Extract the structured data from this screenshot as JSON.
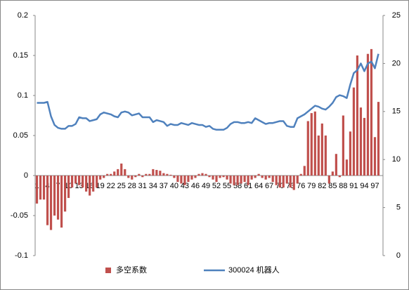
{
  "chart_data": {
    "type": "bar-line",
    "categories": [
      "1",
      null,
      null,
      "4",
      null,
      null,
      "7",
      null,
      null,
      "10",
      null,
      null,
      "13",
      null,
      null,
      "16",
      null,
      null,
      "19",
      null,
      null,
      "22",
      null,
      null,
      "25",
      null,
      null,
      "28",
      null,
      null,
      "31",
      null,
      null,
      "34",
      null,
      null,
      "37",
      null,
      null,
      "40",
      null,
      null,
      "43",
      null,
      null,
      "46",
      null,
      null,
      "49",
      null,
      null,
      "52",
      null,
      null,
      "55",
      null,
      null,
      "58",
      null,
      null,
      "61",
      null,
      null,
      "64",
      null,
      null,
      "67",
      null,
      null,
      "70",
      null,
      null,
      "73",
      null,
      null,
      "76",
      null,
      null,
      "79",
      null,
      null,
      "82",
      null,
      null,
      "85",
      null,
      null,
      "88",
      null,
      null,
      "91",
      null,
      null,
      "94",
      null,
      null,
      "97",
      null
    ],
    "series": [
      {
        "name": "多空系数",
        "color": "#c0504d",
        "kind": "bar",
        "values": [
          -0.035,
          -0.03,
          -0.03,
          -0.062,
          -0.068,
          -0.05,
          -0.055,
          -0.065,
          -0.045,
          -0.028,
          -0.015,
          -0.01,
          -0.012,
          -0.015,
          -0.02,
          -0.025,
          -0.02,
          -0.015,
          -0.005,
          -0.003,
          0.002,
          0.002,
          0.005,
          0.008,
          0.015,
          0.008,
          -0.003,
          -0.005,
          -0.002,
          0.002,
          -0.002,
          0.002,
          0.002,
          0.008,
          0.007,
          0.006,
          0.003,
          0.002,
          0.001,
          -0.003,
          -0.008,
          -0.01,
          -0.012,
          -0.008,
          -0.005,
          -0.003,
          0.002,
          0.003,
          0.002,
          -0.002,
          -0.005,
          -0.008,
          -0.003,
          -0.002,
          -0.005,
          -0.01,
          -0.012,
          -0.012,
          -0.01,
          -0.008,
          -0.012,
          -0.005,
          -0.003,
          0.002,
          -0.003,
          -0.005,
          -0.003,
          -0.008,
          -0.012,
          -0.015,
          -0.015,
          -0.01,
          -0.015,
          -0.018,
          -0.01,
          0.002,
          0.012,
          0.068,
          0.078,
          0.08,
          0.05,
          0.065,
          0.05,
          -0.01,
          0.005,
          0.027,
          -0.002,
          0.075,
          0.02,
          0.055,
          0.11,
          0.15,
          0.085,
          0.072,
          0.152,
          0.158,
          0.048,
          0.092
        ]
      },
      {
        "name": "300024 机器人",
        "color": "#4f81bd",
        "kind": "line",
        "axis": "y2",
        "values": [
          15.9,
          15.9,
          15.9,
          16,
          14.5,
          13.6,
          13.3,
          13.2,
          13.2,
          13.5,
          13.5,
          13.7,
          14.4,
          14.3,
          14.3,
          14.0,
          14.1,
          14.2,
          14.7,
          14.9,
          14.8,
          14.7,
          14.5,
          14.4,
          14.9,
          15.0,
          14.9,
          14.6,
          14.7,
          14.8,
          14.4,
          14.4,
          14.4,
          13.9,
          14.1,
          14.0,
          13.9,
          13.5,
          13.7,
          13.6,
          13.6,
          13.8,
          13.7,
          13.6,
          13.8,
          13.7,
          13.6,
          13.6,
          13.4,
          13.5,
          13.2,
          13.1,
          13.1,
          13.1,
          13.3,
          13.7,
          13.9,
          13.9,
          13.8,
          13.8,
          13.9,
          13.8,
          14.3,
          14.1,
          13.9,
          13.7,
          13.8,
          13.8,
          13.9,
          14.0,
          14.0,
          13.5,
          13.4,
          13.4,
          14.3,
          14.5,
          14.7,
          15.0,
          15.3,
          15.6,
          15.5,
          15.3,
          15.2,
          15.5,
          15.9,
          16.5,
          16.7,
          16.6,
          16.4,
          17.8,
          19.0,
          19.3,
          20.0,
          19.2,
          20.0,
          20.2,
          19.5,
          21.0
        ]
      }
    ],
    "ylim": [
      -0.1,
      0.2
    ],
    "yticks": [
      -0.1,
      -0.05,
      0,
      0.05,
      0.1,
      0.15,
      0.2
    ],
    "y2lim": [
      0,
      25
    ],
    "y2ticks": [
      0,
      5,
      10,
      15,
      20,
      25
    ],
    "legend": "bottom"
  }
}
